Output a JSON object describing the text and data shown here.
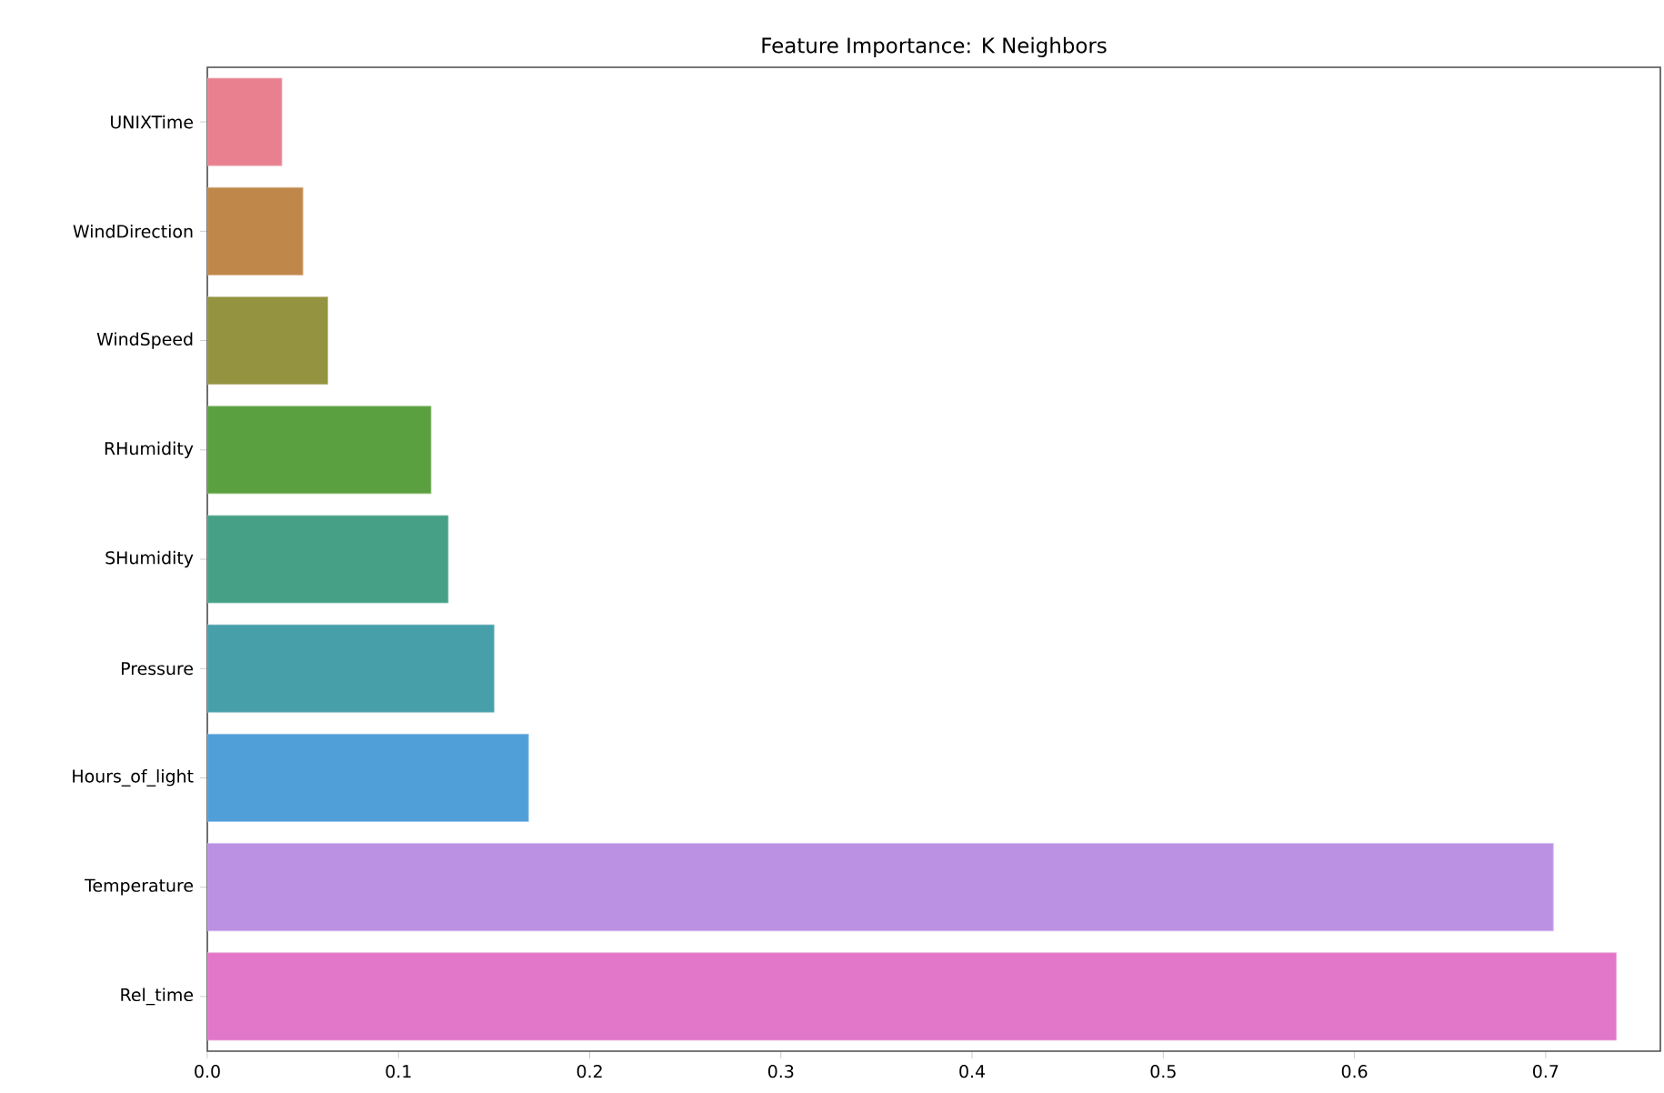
{
  "chart_data": {
    "type": "bar",
    "orientation": "horizontal",
    "title": "Feature Importance: K Neighbors",
    "categories": [
      "UNIXTime",
      "WindDirection",
      "WindSpeed",
      "RHumidity",
      "SHumidity",
      "Pressure",
      "Hours_of_light",
      "Temperature",
      "Rel_time"
    ],
    "values": [
      0.039,
      0.05,
      0.063,
      0.117,
      0.126,
      0.15,
      0.168,
      0.704,
      0.737
    ],
    "colors": [
      "#e8808f",
      "#c0874a",
      "#949340",
      "#5aa040",
      "#45a086",
      "#479faa",
      "#519fd8",
      "#bb91e4",
      "#e276c8"
    ],
    "xlim": [
      0,
      0.76
    ],
    "xticks": [
      {
        "value": 0,
        "label": "0.0"
      },
      0.1,
      0.2,
      0.3,
      0.4,
      0.5,
      0.6,
      0.7
    ],
    "grid": false
  }
}
